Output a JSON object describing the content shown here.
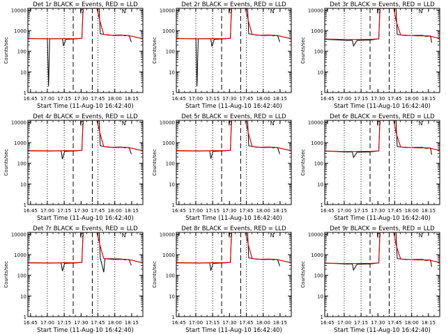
{
  "chart_data": {
    "type": "line",
    "shared": {
      "xlabel": "Start Time (11-Aug-10 16:42:40)",
      "ylabel": "Counts/sec",
      "x_ticks": [
        "16:45",
        "17:00",
        "17:15",
        "17:30",
        "17:45",
        "18:00",
        "18:15"
      ],
      "x_range": [
        "16:42:40",
        "18:25:00"
      ],
      "y_scale": "log",
      "y_range": [
        1,
        12000
      ],
      "y_ticks": [
        "1",
        "10",
        "100",
        "1000",
        "10000"
      ],
      "vertical_dotted_lines": [
        "17:00",
        "17:15",
        "17:45",
        "18:00"
      ],
      "vertical_dashed_lines": [
        "17:23",
        "17:40"
      ],
      "markers": [
        "D",
        "N"
      ],
      "series_colors": {
        "events": "#000000",
        "lld": "#e00000"
      }
    },
    "panels": [
      {
        "title": "Det 1r BLACK = Events, RED = LLD",
        "events": [
          [
            0,
            420
          ],
          [
            0.17,
            400
          ],
          [
            0.18,
            2
          ],
          [
            0.19,
            400
          ],
          [
            0.3,
            410
          ],
          [
            0.31,
            180
          ],
          [
            0.33,
            380
          ],
          [
            0.43,
            400
          ],
          [
            0.44,
            410
          ],
          [
            0.47,
            430
          ],
          [
            0.48,
            12000
          ],
          [
            0.62,
            12000
          ],
          [
            0.63,
            700
          ],
          [
            0.7,
            600
          ],
          [
            0.82,
            620
          ],
          [
            0.84,
            560
          ],
          [
            0.88,
            590
          ],
          [
            0.9,
            280
          ]
        ],
        "lld": [
          [
            0,
            410
          ],
          [
            0.2,
            400
          ],
          [
            0.4,
            410
          ],
          [
            0.47,
            420
          ],
          [
            0.48,
            12000
          ],
          [
            0.6,
            12000
          ],
          [
            0.63,
            2500
          ],
          [
            0.66,
            650
          ],
          [
            0.75,
            580
          ],
          [
            0.85,
            600
          ],
          [
            0.9,
            540
          ],
          [
            1,
            400
          ]
        ]
      },
      {
        "title": "Det 2r BLACK = Events, RED = LLD",
        "events": [
          [
            0,
            420
          ],
          [
            0.17,
            400
          ],
          [
            0.18,
            2
          ],
          [
            0.19,
            400
          ],
          [
            0.3,
            410
          ],
          [
            0.31,
            170
          ],
          [
            0.33,
            380
          ],
          [
            0.43,
            400
          ],
          [
            0.47,
            430
          ],
          [
            0.48,
            12000
          ],
          [
            0.62,
            12000
          ],
          [
            0.63,
            700
          ],
          [
            0.7,
            600
          ],
          [
            0.82,
            620
          ],
          [
            0.84,
            560
          ],
          [
            0.88,
            590
          ],
          [
            0.9,
            280
          ]
        ],
        "lld": [
          [
            0,
            410
          ],
          [
            0.2,
            400
          ],
          [
            0.4,
            410
          ],
          [
            0.47,
            420
          ],
          [
            0.48,
            12000
          ],
          [
            0.6,
            12000
          ],
          [
            0.63,
            2500
          ],
          [
            0.66,
            650
          ],
          [
            0.75,
            580
          ],
          [
            0.85,
            600
          ],
          [
            0.9,
            540
          ],
          [
            1,
            400
          ]
        ]
      },
      {
        "title": "Det 3r BLACK = Events, RED = LLD",
        "events": [
          [
            0,
            380
          ],
          [
            0.1,
            360
          ],
          [
            0.2,
            330
          ],
          [
            0.24,
            340
          ],
          [
            0.25,
            180
          ],
          [
            0.28,
            330
          ],
          [
            0.4,
            350
          ],
          [
            0.47,
            400
          ],
          [
            0.48,
            12000
          ],
          [
            0.62,
            12000
          ],
          [
            0.63,
            650
          ],
          [
            0.7,
            580
          ],
          [
            0.85,
            590
          ],
          [
            0.88,
            520
          ],
          [
            0.92,
            560
          ],
          [
            0.93,
            260
          ]
        ],
        "lld": [
          [
            0,
            390
          ],
          [
            0.2,
            370
          ],
          [
            0.4,
            380
          ],
          [
            0.47,
            400
          ],
          [
            0.48,
            12000
          ],
          [
            0.6,
            12000
          ],
          [
            0.62,
            3000
          ],
          [
            0.66,
            620
          ],
          [
            0.8,
            560
          ],
          [
            0.9,
            560
          ],
          [
            1,
            420
          ]
        ]
      },
      {
        "title": "Det 4r BLACK = Events, RED = LLD",
        "events": [
          [
            0,
            400
          ],
          [
            0.2,
            390
          ],
          [
            0.29,
            400
          ],
          [
            0.3,
            160
          ],
          [
            0.32,
            380
          ],
          [
            0.43,
            400
          ],
          [
            0.47,
            430
          ],
          [
            0.48,
            12000
          ],
          [
            0.62,
            12000
          ],
          [
            0.63,
            700
          ],
          [
            0.7,
            600
          ],
          [
            0.82,
            620
          ],
          [
            0.84,
            560
          ],
          [
            0.88,
            590
          ],
          [
            0.9,
            280
          ]
        ],
        "lld": [
          [
            0,
            410
          ],
          [
            0.2,
            400
          ],
          [
            0.4,
            410
          ],
          [
            0.47,
            420
          ],
          [
            0.48,
            12000
          ],
          [
            0.6,
            12000
          ],
          [
            0.63,
            2500
          ],
          [
            0.66,
            650
          ],
          [
            0.75,
            580
          ],
          [
            0.85,
            600
          ],
          [
            0.9,
            540
          ],
          [
            1,
            400
          ]
        ]
      },
      {
        "title": "Det 5r BLACK = Events, RED = LLD",
        "events": [
          [
            0,
            400
          ],
          [
            0.2,
            390
          ],
          [
            0.29,
            400
          ],
          [
            0.3,
            170
          ],
          [
            0.32,
            380
          ],
          [
            0.43,
            400
          ],
          [
            0.47,
            430
          ],
          [
            0.48,
            12000
          ],
          [
            0.62,
            12000
          ],
          [
            0.63,
            700
          ],
          [
            0.7,
            600
          ],
          [
            0.82,
            620
          ],
          [
            0.84,
            560
          ],
          [
            0.88,
            590
          ],
          [
            0.9,
            280
          ]
        ],
        "lld": [
          [
            0,
            410
          ],
          [
            0.2,
            400
          ],
          [
            0.4,
            410
          ],
          [
            0.47,
            420
          ],
          [
            0.48,
            12000
          ],
          [
            0.6,
            12000
          ],
          [
            0.63,
            2500
          ],
          [
            0.66,
            650
          ],
          [
            0.75,
            580
          ],
          [
            0.85,
            600
          ],
          [
            0.9,
            540
          ],
          [
            1,
            400
          ]
        ]
      },
      {
        "title": "Det 6r BLACK = Events, RED = LLD",
        "events": [
          [
            0,
            390
          ],
          [
            0.1,
            370
          ],
          [
            0.2,
            350
          ],
          [
            0.24,
            360
          ],
          [
            0.25,
            190
          ],
          [
            0.28,
            340
          ],
          [
            0.4,
            360
          ],
          [
            0.47,
            400
          ],
          [
            0.48,
            12000
          ],
          [
            0.62,
            12000
          ],
          [
            0.63,
            650
          ],
          [
            0.7,
            580
          ],
          [
            0.85,
            590
          ],
          [
            0.88,
            520
          ],
          [
            0.92,
            560
          ],
          [
            0.93,
            260
          ]
        ],
        "lld": [
          [
            0,
            390
          ],
          [
            0.2,
            370
          ],
          [
            0.4,
            380
          ],
          [
            0.47,
            400
          ],
          [
            0.48,
            12000
          ],
          [
            0.6,
            12000
          ],
          [
            0.62,
            3000
          ],
          [
            0.66,
            620
          ],
          [
            0.8,
            560
          ],
          [
            0.9,
            560
          ],
          [
            1,
            420
          ]
        ]
      },
      {
        "title": "Det 7r BLACK = Events, RED = LLD",
        "events": [
          [
            0,
            400
          ],
          [
            0.2,
            390
          ],
          [
            0.29,
            400
          ],
          [
            0.3,
            160
          ],
          [
            0.32,
            380
          ],
          [
            0.43,
            400
          ],
          [
            0.47,
            430
          ],
          [
            0.48,
            12000
          ],
          [
            0.62,
            12000
          ],
          [
            0.63,
            700
          ],
          [
            0.66,
            140
          ],
          [
            0.67,
            650
          ],
          [
            0.82,
            620
          ],
          [
            0.84,
            560
          ],
          [
            0.88,
            590
          ],
          [
            0.9,
            300
          ]
        ],
        "lld": [
          [
            0,
            410
          ],
          [
            0.2,
            400
          ],
          [
            0.4,
            410
          ],
          [
            0.47,
            420
          ],
          [
            0.48,
            12000
          ],
          [
            0.6,
            12000
          ],
          [
            0.63,
            2500
          ],
          [
            0.66,
            650
          ],
          [
            0.75,
            580
          ],
          [
            0.85,
            600
          ],
          [
            0.9,
            540
          ],
          [
            1,
            400
          ]
        ]
      },
      {
        "title": "Det 8r BLACK = Events, RED = LLD",
        "events": [
          [
            0,
            400
          ],
          [
            0.2,
            390
          ],
          [
            0.29,
            400
          ],
          [
            0.3,
            170
          ],
          [
            0.32,
            380
          ],
          [
            0.43,
            400
          ],
          [
            0.47,
            430
          ],
          [
            0.48,
            12000
          ],
          [
            0.62,
            12000
          ],
          [
            0.63,
            700
          ],
          [
            0.7,
            600
          ],
          [
            0.82,
            620
          ],
          [
            0.84,
            560
          ],
          [
            0.88,
            590
          ],
          [
            0.9,
            280
          ]
        ],
        "lld": [
          [
            0,
            410
          ],
          [
            0.2,
            400
          ],
          [
            0.4,
            410
          ],
          [
            0.47,
            420
          ],
          [
            0.48,
            12000
          ],
          [
            0.6,
            12000
          ],
          [
            0.63,
            2500
          ],
          [
            0.66,
            650
          ],
          [
            0.75,
            580
          ],
          [
            0.85,
            600
          ],
          [
            0.9,
            540
          ],
          [
            1,
            400
          ]
        ]
      },
      {
        "title": "Det 9r BLACK = Events, RED = LLD",
        "events": [
          [
            0,
            390
          ],
          [
            0.1,
            370
          ],
          [
            0.2,
            350
          ],
          [
            0.24,
            360
          ],
          [
            0.25,
            180
          ],
          [
            0.28,
            340
          ],
          [
            0.4,
            360
          ],
          [
            0.47,
            400
          ],
          [
            0.48,
            12000
          ],
          [
            0.62,
            12000
          ],
          [
            0.63,
            650
          ],
          [
            0.7,
            580
          ],
          [
            0.85,
            590
          ],
          [
            0.88,
            520
          ],
          [
            0.92,
            560
          ],
          [
            0.93,
            260
          ]
        ],
        "lld": [
          [
            0,
            390
          ],
          [
            0.2,
            370
          ],
          [
            0.4,
            380
          ],
          [
            0.47,
            400
          ],
          [
            0.48,
            12000
          ],
          [
            0.6,
            12000
          ],
          [
            0.62,
            3000
          ],
          [
            0.66,
            620
          ],
          [
            0.8,
            560
          ],
          [
            0.9,
            560
          ],
          [
            1,
            420
          ]
        ]
      }
    ]
  }
}
